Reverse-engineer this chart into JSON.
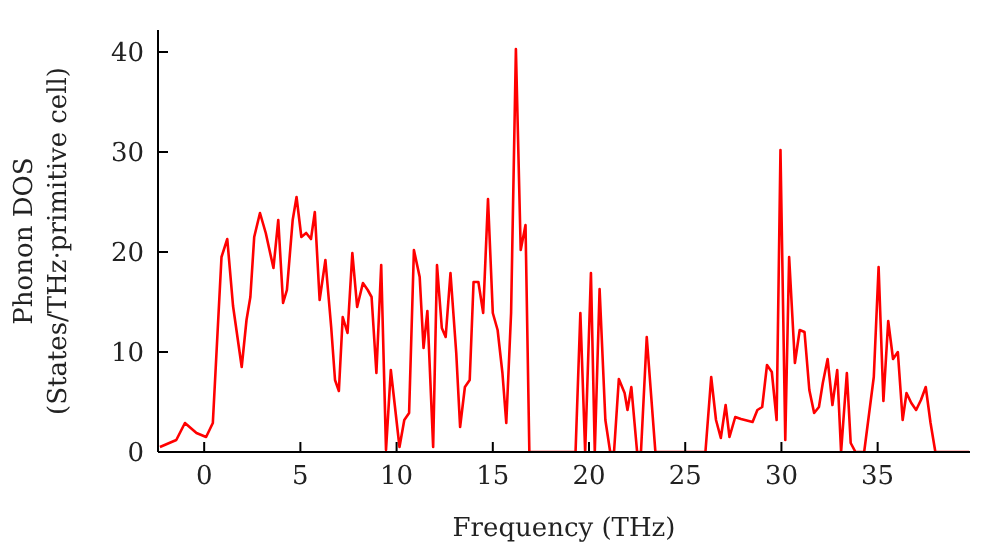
{
  "chart_data": {
    "type": "line",
    "xlabel": "Frequency (THz)",
    "ylabel": "Phonon DOS\n(States/THz·primitive cell)",
    "xlim": [
      -2.4,
      39.8
    ],
    "ylim": [
      0,
      42.2
    ],
    "xticks": [
      0,
      5,
      10,
      15,
      20,
      25,
      30,
      35
    ],
    "yticks": [
      0,
      10,
      20,
      30,
      40
    ],
    "grid": false,
    "legend": false,
    "marker": "none",
    "line_style": "solid",
    "x": [
      -2.3,
      -1.45,
      -1.0,
      -0.4,
      0.1,
      0.45,
      0.9,
      1.2,
      1.5,
      1.95,
      2.2,
      2.4,
      2.6,
      2.9,
      3.2,
      3.6,
      3.85,
      4.1,
      4.3,
      4.6,
      4.8,
      5.05,
      5.3,
      5.55,
      5.75,
      6.0,
      6.3,
      6.6,
      6.8,
      7.0,
      7.2,
      7.45,
      7.7,
      7.95,
      8.25,
      8.5,
      8.7,
      8.95,
      9.2,
      9.45,
      9.7,
      10.15,
      10.4,
      10.65,
      10.9,
      11.2,
      11.4,
      11.6,
      11.9,
      12.1,
      12.35,
      12.55,
      12.8,
      13.1,
      13.3,
      13.55,
      13.8,
      14.0,
      14.25,
      14.5,
      14.75,
      15.0,
      15.25,
      15.5,
      15.7,
      15.95,
      16.2,
      16.45,
      16.7,
      16.9,
      19.3,
      19.55,
      19.8,
      20.1,
      20.3,
      20.55,
      20.85,
      21.1,
      21.3,
      21.55,
      21.85,
      22.0,
      22.2,
      22.5,
      22.7,
      23.0,
      23.45,
      26.05,
      26.35,
      26.6,
      26.85,
      27.1,
      27.3,
      27.6,
      27.9,
      28.5,
      28.75,
      29.0,
      29.25,
      29.5,
      29.75,
      29.95,
      30.2,
      30.4,
      30.7,
      30.95,
      31.2,
      31.45,
      31.7,
      31.95,
      32.15,
      32.4,
      32.65,
      32.9,
      33.1,
      33.4,
      33.6,
      33.85,
      34.3,
      34.8,
      35.05,
      35.3,
      35.55,
      35.8,
      36.05,
      36.3,
      36.5,
      36.75,
      37.0,
      37.25,
      37.5,
      37.75,
      38.0,
      39.75
    ],
    "series": [
      {
        "color": "#ff0000",
        "values": [
          0.5,
          1.2,
          2.9,
          1.9,
          1.5,
          2.9,
          19.5,
          21.3,
          14.6,
          8.5,
          13.2,
          15.5,
          21.5,
          23.9,
          21.9,
          18.4,
          23.2,
          14.9,
          16.2,
          23.2,
          25.5,
          21.5,
          21.9,
          21.3,
          24,
          15.2,
          19.2,
          12.5,
          7.2,
          6.1,
          13.5,
          11.9,
          19.9,
          14.5,
          16.9,
          16.2,
          15.5,
          7.9,
          18.7,
          0.2,
          8.2,
          0.5,
          3.2,
          3.9,
          20.2,
          17.5,
          10.4,
          14.1,
          0.5,
          18.7,
          12.4,
          11.5,
          17.9,
          9.9,
          2.5,
          6.5,
          7.2,
          17,
          17,
          13.9,
          25.3,
          13.9,
          12.2,
          7.9,
          2.9,
          13.9,
          40.3,
          20.2,
          22.7,
          0,
          0,
          13.9,
          0,
          17.9,
          0,
          16.3,
          3.2,
          0,
          0,
          7.3,
          5.9,
          4.2,
          6.5,
          0,
          0,
          11.5,
          0,
          0,
          7.5,
          3.2,
          1.4,
          4.7,
          1.5,
          3.5,
          3.3,
          3,
          4.2,
          4.5,
          8.7,
          8,
          3.2,
          30.2,
          1.2,
          19.5,
          8.9,
          12.2,
          12,
          6.2,
          3.9,
          4.5,
          6.9,
          9.3,
          4.7,
          8.2,
          0,
          7.9,
          0.9,
          0,
          0,
          7.5,
          18.5,
          5.1,
          13.1,
          9.3,
          10,
          3.2,
          5.9,
          4.9,
          4.2,
          5.2,
          6.5,
          2.9,
          0,
          0
        ]
      }
    ]
  }
}
